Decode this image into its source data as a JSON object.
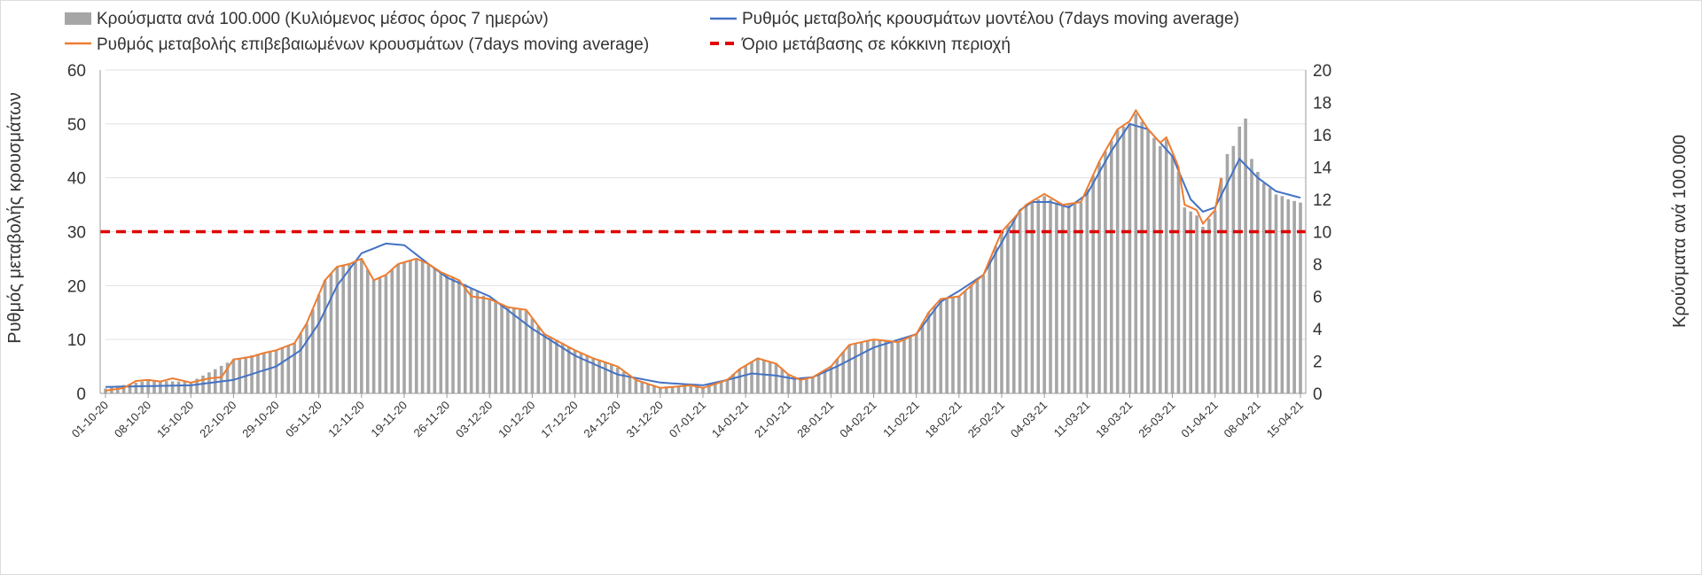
{
  "chart_data": {
    "type": "bar+line",
    "legend": {
      "bars": "Κρούσματα ανά 100.000 (Κυλιόμενος μέσος όρος 7 ημερών)",
      "model": "Ρυθμός μεταβολής κρουσμάτων μοντέλου (7days moving average)",
      "confirmed": "Ρυθμός μεταβολής επιβεβαιωμένων κρουσμάτων (7days moving average)",
      "threshold": "Όριο μετάβασης σε κόκκινη περιοχή"
    },
    "ylabel_left": "Ρυθμός μεταβολής κρουσμάτων",
    "ylabel_right": "Κρούσματα ανά 100.000",
    "ylim_left": [
      0,
      60
    ],
    "yticks_left": [
      "0",
      "10",
      "20",
      "30",
      "40",
      "50",
      "60"
    ],
    "ylim_right": [
      0,
      20
    ],
    "yticks_right": [
      "0",
      "2",
      "4",
      "6",
      "8",
      "10",
      "12",
      "14",
      "16",
      "18",
      "20"
    ],
    "x_ticks": [
      "01-10-20",
      "08-10-20",
      "15-10-20",
      "22-10-20",
      "29-10-20",
      "05-11-20",
      "12-11-20",
      "19-11-20",
      "26-11-20",
      "03-12-20",
      "10-12-20",
      "17-12-20",
      "24-12-20",
      "31-12-20",
      "07-01-21",
      "14-01-21",
      "21-01-21",
      "28-01-21",
      "04-02-21",
      "11-02-21",
      "18-02-21",
      "25-02-21",
      "04-03-21",
      "11-03-21",
      "18-03-21",
      "25-03-21",
      "01-04-21",
      "08-04-21",
      "15-04-21"
    ],
    "days": 197,
    "threshold_left": 30,
    "grid": true,
    "legend_placement": "top",
    "colors": {
      "bars": "#a6a6a6",
      "model": "#4472c4",
      "confirmed": "#ed7d31",
      "threshold": "#e00000"
    },
    "series_note": "points are [day index from 01-10-20, value]",
    "model_points": [
      [
        0,
        1.2
      ],
      [
        14,
        1.5
      ],
      [
        21,
        2.5
      ],
      [
        28,
        5
      ],
      [
        32,
        8
      ],
      [
        35,
        13
      ],
      [
        38,
        20
      ],
      [
        42,
        26
      ],
      [
        46,
        27.8
      ],
      [
        49,
        27.5
      ],
      [
        53,
        24
      ],
      [
        56,
        21.5
      ],
      [
        63,
        18
      ],
      [
        70,
        12
      ],
      [
        77,
        7
      ],
      [
        84,
        3.5
      ],
      [
        91,
        2
      ],
      [
        98,
        1.5
      ],
      [
        102,
        2.5
      ],
      [
        106,
        3.7
      ],
      [
        110,
        3.3
      ],
      [
        113,
        2.7
      ],
      [
        116,
        3
      ],
      [
        120,
        5
      ],
      [
        126,
        8.5
      ],
      [
        133,
        11
      ],
      [
        137,
        17
      ],
      [
        140,
        19
      ],
      [
        144,
        22
      ],
      [
        147,
        28
      ],
      [
        150,
        34
      ],
      [
        152,
        35.5
      ],
      [
        155,
        35.5
      ],
      [
        158,
        34.5
      ],
      [
        161,
        37
      ],
      [
        165,
        45
      ],
      [
        168,
        50
      ],
      [
        171,
        49
      ],
      [
        175,
        44
      ],
      [
        178,
        36
      ],
      [
        180,
        33.7
      ],
      [
        182,
        34.5
      ],
      [
        186,
        43.5
      ],
      [
        189,
        40
      ],
      [
        192,
        37.5
      ],
      [
        196,
        36.3
      ]
    ],
    "confirmed_points": [
      [
        0,
        0.5
      ],
      [
        3,
        1
      ],
      [
        5,
        2.3
      ],
      [
        7,
        2.5
      ],
      [
        9,
        2.2
      ],
      [
        11,
        2.8
      ],
      [
        14,
        2
      ],
      [
        17,
        2.8
      ],
      [
        19,
        3
      ],
      [
        21,
        6.3
      ],
      [
        24,
        6.8
      ],
      [
        26,
        7.5
      ],
      [
        28,
        8
      ],
      [
        31,
        9.3
      ],
      [
        33,
        13
      ],
      [
        36,
        21
      ],
      [
        38,
        23.5
      ],
      [
        40,
        24
      ],
      [
        42,
        25
      ],
      [
        44,
        21
      ],
      [
        46,
        22
      ],
      [
        48,
        24
      ],
      [
        51,
        25
      ],
      [
        53,
        24
      ],
      [
        55,
        22.5
      ],
      [
        58,
        21
      ],
      [
        60,
        18
      ],
      [
        63,
        17.5
      ],
      [
        66,
        16
      ],
      [
        69,
        15.5
      ],
      [
        72,
        11
      ],
      [
        77,
        8
      ],
      [
        80,
        6.5
      ],
      [
        84,
        5
      ],
      [
        87,
        2.5
      ],
      [
        91,
        1
      ],
      [
        96,
        1.5
      ],
      [
        98,
        1
      ],
      [
        102,
        2.5
      ],
      [
        104,
        4.5
      ],
      [
        107,
        6.5
      ],
      [
        110,
        5.5
      ],
      [
        112,
        3.5
      ],
      [
        114,
        2.5
      ],
      [
        116,
        3
      ],
      [
        119,
        5
      ],
      [
        122,
        9
      ],
      [
        126,
        10
      ],
      [
        130,
        9.5
      ],
      [
        133,
        11
      ],
      [
        135,
        15
      ],
      [
        137,
        17.5
      ],
      [
        140,
        18
      ],
      [
        144,
        22
      ],
      [
        147,
        30
      ],
      [
        151,
        35
      ],
      [
        154,
        37
      ],
      [
        157,
        35
      ],
      [
        160,
        35.5
      ],
      [
        163,
        43
      ],
      [
        166,
        49
      ],
      [
        168,
        50.5
      ],
      [
        169,
        52.5
      ],
      [
        171,
        49
      ],
      [
        173,
        46.5
      ],
      [
        174,
        47.5
      ],
      [
        176,
        42
      ],
      [
        177,
        35
      ],
      [
        179,
        34
      ],
      [
        180,
        31.5
      ],
      [
        182,
        34
      ],
      [
        183,
        40
      ]
    ],
    "bar_points_right_axis": [
      [
        0,
        0.3
      ],
      [
        7,
        0.8
      ],
      [
        14,
        0.7
      ],
      [
        21,
        2.1
      ],
      [
        28,
        2.7
      ],
      [
        31,
        3.1
      ],
      [
        33,
        4.3
      ],
      [
        36,
        7
      ],
      [
        38,
        7.8
      ],
      [
        42,
        8.3
      ],
      [
        44,
        7
      ],
      [
        46,
        7.3
      ],
      [
        48,
        8
      ],
      [
        51,
        8.3
      ],
      [
        53,
        8
      ],
      [
        55,
        7.5
      ],
      [
        58,
        7
      ],
      [
        63,
        5.8
      ],
      [
        66,
        5.3
      ],
      [
        69,
        5.1
      ],
      [
        72,
        3.7
      ],
      [
        77,
        2.7
      ],
      [
        80,
        2.2
      ],
      [
        84,
        1.6
      ],
      [
        87,
        0.8
      ],
      [
        91,
        0.4
      ],
      [
        96,
        0.5
      ],
      [
        98,
        0.4
      ],
      [
        102,
        0.9
      ],
      [
        104,
        1.5
      ],
      [
        107,
        2.2
      ],
      [
        110,
        1.8
      ],
      [
        112,
        1.2
      ],
      [
        114,
        0.9
      ],
      [
        116,
        1
      ],
      [
        119,
        1.7
      ],
      [
        122,
        3
      ],
      [
        126,
        3.3
      ],
      [
        130,
        3.2
      ],
      [
        133,
        3.7
      ],
      [
        135,
        5
      ],
      [
        137,
        5.8
      ],
      [
        140,
        6
      ],
      [
        144,
        7.3
      ],
      [
        147,
        10
      ],
      [
        151,
        11.6
      ],
      [
        154,
        12.2
      ],
      [
        157,
        11.6
      ],
      [
        160,
        11.8
      ],
      [
        163,
        14.3
      ],
      [
        166,
        16.3
      ],
      [
        168,
        16.7
      ],
      [
        169,
        17.3
      ],
      [
        171,
        16.3
      ],
      [
        173,
        15.3
      ],
      [
        174,
        15.7
      ],
      [
        176,
        13.7
      ],
      [
        177,
        11.5
      ],
      [
        179,
        11
      ],
      [
        180,
        10.3
      ],
      [
        182,
        11.3
      ],
      [
        183,
        13.3
      ],
      [
        184,
        14.8
      ],
      [
        185,
        15.3
      ],
      [
        186,
        16.5
      ],
      [
        187,
        17
      ],
      [
        188,
        14.5
      ],
      [
        189,
        13.7
      ],
      [
        190,
        13
      ],
      [
        191,
        12.7
      ],
      [
        192,
        12.3
      ],
      [
        193,
        12.2
      ],
      [
        194,
        12
      ],
      [
        195,
        11.9
      ],
      [
        196,
        11.8
      ]
    ]
  }
}
